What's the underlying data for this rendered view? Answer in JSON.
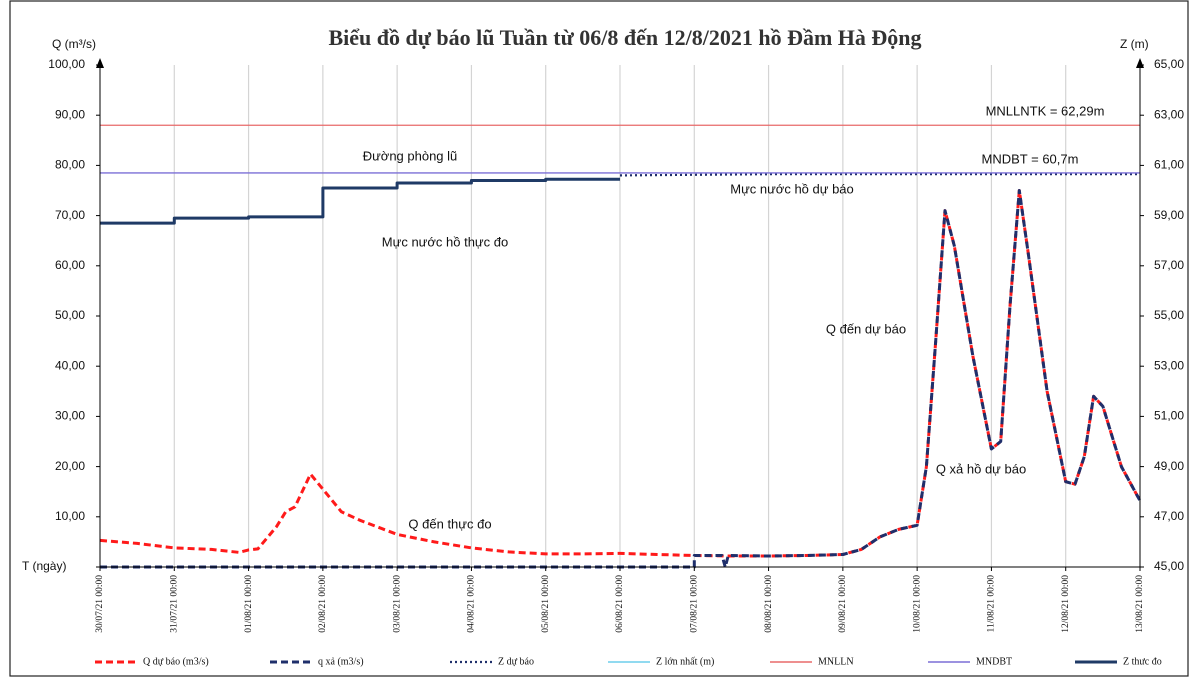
{
  "chart_data": {
    "type": "line",
    "title": "Biểu đồ dự báo lũ Tuần từ 06/8 đến 12/8/2021 hồ Đầm Hà Động",
    "y_label": "Q (m³/s)",
    "y2_label": "Z (m)",
    "x_label": "T (ngày)",
    "xlim": [
      "30/07/21 00:00",
      "13/08/21 00:00"
    ],
    "xticks": [
      "30/07/21 00:00",
      "31/07/21 00:00",
      "01/08/21 00:00",
      "02/08/21 00:00",
      "03/08/21 00:00",
      "04/08/21 00:00",
      "05/08/21 00:00",
      "06/08/21 00:00",
      "07/08/21 00:00",
      "08/08/21 00:00",
      "09/08/21 00:00",
      "10/08/21 00:00",
      "11/08/21 00:00",
      "12/08/21 00:00",
      "13/08/21 00:00"
    ],
    "ylim": [
      0,
      100
    ],
    "yticks": [
      {
        "value": 0,
        "label": ""
      },
      {
        "value": 10,
        "label": "10,00"
      },
      {
        "value": 20,
        "label": "20,00"
      },
      {
        "value": 30,
        "label": "30,00"
      },
      {
        "value": 40,
        "label": "40,00"
      },
      {
        "value": 50,
        "label": "50,00"
      },
      {
        "value": 60,
        "label": "60,00"
      },
      {
        "value": 70,
        "label": "70,00"
      },
      {
        "value": 80,
        "label": "80,00"
      },
      {
        "value": 90,
        "label": "90,00"
      },
      {
        "value": 100,
        "label": "100,00"
      }
    ],
    "y2lim": [
      45,
      65
    ],
    "y2ticks": [
      {
        "value": 45,
        "label": "45,00"
      },
      {
        "value": 47,
        "label": "47,00"
      },
      {
        "value": 49,
        "label": "49,00"
      },
      {
        "value": 51,
        "label": "51,00"
      },
      {
        "value": 53,
        "label": "53,00"
      },
      {
        "value": 55,
        "label": "55,00"
      },
      {
        "value": 57,
        "label": "57,00"
      },
      {
        "value": 59,
        "label": "59,00"
      },
      {
        "value": 61,
        "label": "61,00"
      },
      {
        "value": 63,
        "label": "63,00"
      },
      {
        "value": 65,
        "label": "65,00"
      }
    ],
    "grid": "x",
    "series": [
      {
        "name": "Q dự báo (m3/s)",
        "color": "#ff1a1a",
        "style": "dashed",
        "x": [
          "30/07/21 00:00",
          "30/07/21 12:00",
          "31/07/21 00:00",
          "31/07/21 12:00",
          "31/07/21 21:00",
          "01/08/21 00:00",
          "01/08/21 03:00",
          "01/08/21 09:00",
          "01/08/21 12:00",
          "01/08/21 15:00",
          "01/08/21 20:00",
          "02/08/21 00:00",
          "02/08/21 06:00",
          "02/08/21 12:00",
          "03/08/21 00:00",
          "03/08/21 12:00",
          "04/08/21 00:00",
          "04/08/21 12:00",
          "05/08/21 00:00",
          "05/08/21 12:00",
          "06/08/21 00:00",
          "06/08/21 12:00",
          "07/08/21 00:00",
          "07/08/21 12:00",
          "08/08/21 00:00",
          "08/08/21 12:00",
          "09/08/21 00:00",
          "09/08/21 06:00",
          "09/08/21 12:00",
          "09/08/21 18:00",
          "10/08/21 00:00",
          "10/08/21 03:00",
          "10/08/21 06:00",
          "10/08/21 09:00",
          "10/08/21 12:00",
          "10/08/21 18:00",
          "11/08/21 00:00",
          "11/08/21 03:00",
          "11/08/21 06:00",
          "11/08/21 09:00",
          "11/08/21 12:00",
          "11/08/21 18:00",
          "12/08/21 00:00",
          "12/08/21 03:00",
          "12/08/21 06:00",
          "12/08/21 09:00",
          "12/08/21 12:00",
          "12/08/21 18:00",
          "13/08/21 00:00"
        ],
        "values": [
          5.3,
          4.7,
          3.8,
          3.5,
          2.9,
          3.4,
          3.6,
          8.0,
          11.0,
          12.0,
          18.5,
          15.5,
          11.0,
          9.3,
          6.5,
          5.0,
          3.8,
          3.0,
          2.6,
          2.6,
          2.7,
          2.5,
          2.3,
          2.2,
          2.2,
          2.3,
          2.5,
          3.5,
          6.0,
          7.5,
          8.3,
          20.0,
          45.0,
          71.0,
          64.0,
          42.0,
          23.5,
          25.0,
          52.0,
          75.0,
          62.0,
          35.0,
          17.0,
          16.5,
          22.0,
          34.0,
          32.0,
          20.0,
          13.2
        ]
      },
      {
        "name": "q xả    (m3/s)",
        "color": "#1f2f6b",
        "style": "dashed",
        "x": [
          "30/07/21 00:00",
          "07/08/21 00:00",
          "07/08/21 00:00",
          "07/08/21 09:00",
          "07/08/21 10:00",
          "07/08/21 11:00",
          "08/08/21 00:00",
          "08/08/21 12:00",
          "09/08/21 00:00",
          "09/08/21 06:00",
          "09/08/21 12:00",
          "09/08/21 18:00",
          "10/08/21 00:00",
          "10/08/21 03:00",
          "10/08/21 06:00",
          "10/08/21 09:00",
          "10/08/21 12:00",
          "10/08/21 18:00",
          "11/08/21 00:00",
          "11/08/21 03:00",
          "11/08/21 06:00",
          "11/08/21 09:00",
          "11/08/21 12:00",
          "11/08/21 18:00",
          "12/08/21 00:00",
          "12/08/21 03:00",
          "12/08/21 06:00",
          "12/08/21 09:00",
          "12/08/21 12:00",
          "12/08/21 18:00",
          "13/08/21 00:00"
        ],
        "values": [
          0,
          0,
          2.3,
          2.3,
          0,
          2.3,
          2.2,
          2.3,
          2.5,
          3.5,
          6.0,
          7.5,
          8.3,
          20.0,
          45.0,
          71.0,
          64.0,
          42.0,
          23.5,
          25.0,
          52.0,
          75.0,
          62.0,
          35.0,
          17.0,
          16.5,
          22.0,
          34.0,
          32.0,
          20.0,
          13.2
        ]
      },
      {
        "name": "Z dự báo",
        "color": "#1f2f6b",
        "style": "dotted",
        "axis": "y2",
        "x": [
          "06/08/21 00:00",
          "08/08/21 00:00",
          "13/08/21 00:00"
        ],
        "values": [
          60.6,
          60.65,
          60.65
        ]
      },
      {
        "name": "Z lớn nhất (m)",
        "color": "#4fc3e8",
        "style": "solid",
        "axis": "y2"
      },
      {
        "name": "MNLLN",
        "color": "#e86a6a",
        "style": "solid",
        "axis": "y2",
        "value": 62.6
      },
      {
        "name": "MNDBT",
        "color": "#7b6fd6",
        "style": "solid",
        "axis": "y2",
        "value": 60.7
      },
      {
        "name": "Z thưc đo",
        "color": "#1f3a66",
        "style": "thick",
        "axis": "y2",
        "x": [
          "30/07/21 00:00",
          "31/07/21 00:00",
          "31/07/21 00:00",
          "01/08/21 00:00",
          "01/08/21 00:00",
          "02/08/21 00:00",
          "02/08/21 00:00",
          "03/08/21 00:00",
          "03/08/21 00:00",
          "04/08/21 00:00",
          "04/08/21 00:00",
          "05/08/21 00:00",
          "05/08/21 00:00",
          "06/08/21 00:00"
        ],
        "values": [
          58.7,
          58.7,
          58.9,
          58.9,
          58.95,
          58.95,
          60.1,
          60.1,
          60.3,
          60.3,
          60.4,
          60.4,
          60.45,
          60.45
        ]
      }
    ],
    "annotations": [
      "MNLLNTK = 62,29m",
      "MNDBT = 60,7m",
      "Đường phòng lũ",
      "Mực nước hồ dự báo",
      "Mực nước hồ thực đo",
      "Q đến dự báo",
      "Q xả hồ dự báo",
      "Q đến thực đo"
    ]
  }
}
